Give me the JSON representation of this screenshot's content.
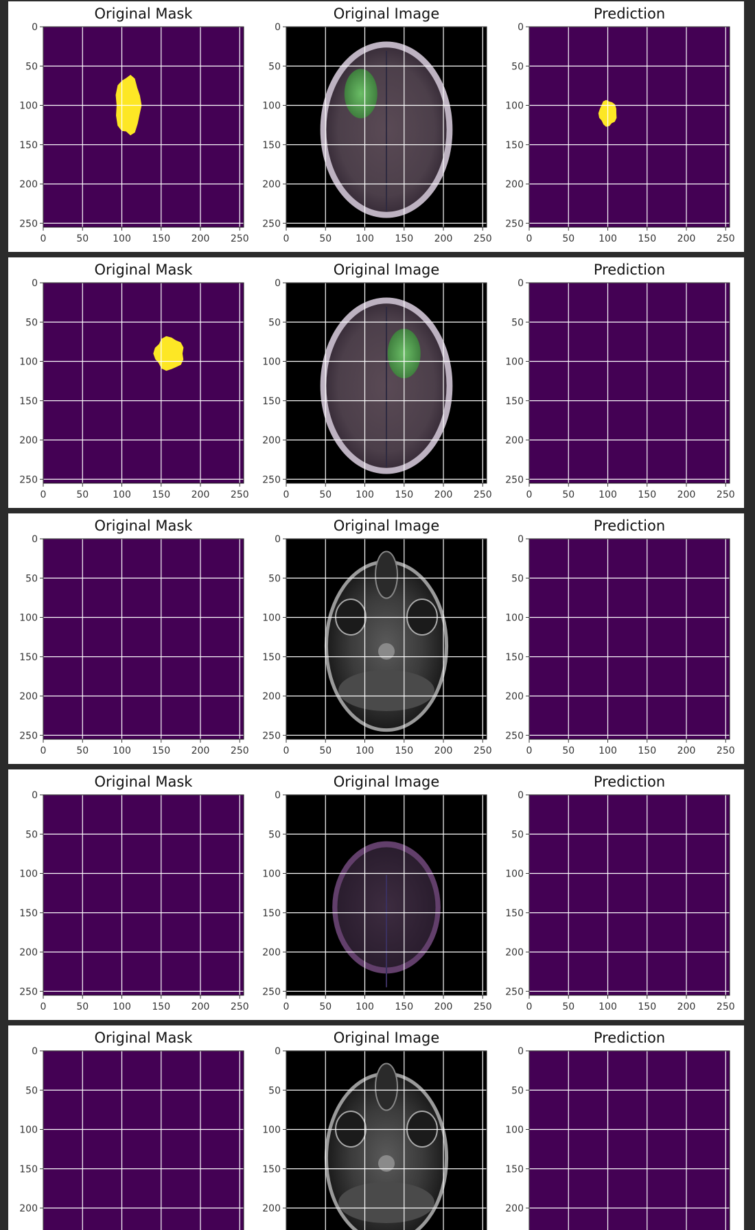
{
  "figure": {
    "background": "#2b2b2b",
    "row_background": "#ffffff",
    "grid_color": "#ffffff",
    "mask_background": "#440154",
    "mask_foreground": "#fde725"
  },
  "titles": {
    "mask": "Original Mask",
    "image": "Original Image",
    "prediction": "Prediction"
  },
  "axis": {
    "x_ticks": [
      "0",
      "50",
      "100",
      "150",
      "200",
      "250"
    ],
    "y_ticks": [
      "0",
      "50",
      "100",
      "150",
      "200",
      "250"
    ],
    "x_range": [
      0,
      255
    ],
    "y_range": [
      0,
      255
    ]
  },
  "rows": [
    {
      "mask": {
        "tumor": true,
        "center": [
          108,
          100
        ],
        "size": [
          35,
          80
        ]
      },
      "image": {
        "style": "flair-color",
        "lesion": [
          95,
          85
        ]
      },
      "prediction": {
        "tumor": true,
        "center": [
          100,
          110
        ],
        "size": [
          24,
          35
        ]
      }
    },
    {
      "mask": {
        "tumor": true,
        "center": [
          160,
          90
        ],
        "size": [
          40,
          45
        ]
      },
      "image": {
        "style": "flair-color",
        "lesion": [
          150,
          90
        ]
      },
      "prediction": {
        "tumor": false
      }
    },
    {
      "mask": {
        "tumor": false
      },
      "image": {
        "style": "grayscale-base"
      },
      "prediction": {
        "tumor": false
      }
    },
    {
      "mask": {
        "tumor": false
      },
      "image": {
        "style": "flair-dark"
      },
      "prediction": {
        "tumor": false
      }
    },
    {
      "mask": {
        "tumor": false
      },
      "image": {
        "style": "grayscale-base"
      },
      "prediction": {
        "tumor": false
      }
    }
  ]
}
